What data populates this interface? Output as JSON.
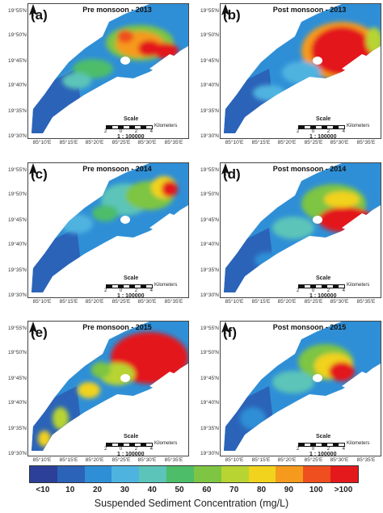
{
  "panels": [
    {
      "label": "(a)",
      "title": "Pre monsoon - 2013"
    },
    {
      "label": "(b)",
      "title": "Post monsoon - 2013"
    },
    {
      "label": "(c)",
      "title": "Pre monsoon - 2014"
    },
    {
      "label": "(d)",
      "title": "Post monsoon - 2014"
    },
    {
      "label": "(e)",
      "title": "Pre monsoon - 2015"
    },
    {
      "label": "(f)",
      "title": "Post monsoon - 2015"
    }
  ],
  "y_ticks": [
    "19°55'N",
    "19°50'N",
    "19°45'N",
    "19°40'N",
    "19°35'N",
    "19°30'N"
  ],
  "x_ticks": [
    "85°10'E",
    "85°15'E",
    "85°20'E",
    "85°25'E",
    "85°30'E",
    "85°35'E"
  ],
  "scale": {
    "title": "Scale",
    "units": "Kilometers",
    "ticks": [
      "2",
      "0",
      "2",
      "4"
    ],
    "ratio": "1 : 100000"
  },
  "legend": {
    "title": "Suspended Sediment Concentration (mg/L)",
    "classes": [
      {
        "label": "<10",
        "color": "#2c3f99"
      },
      {
        "label": "10",
        "color": "#2b63b8"
      },
      {
        "label": "20",
        "color": "#2f8fd6"
      },
      {
        "label": "30",
        "color": "#4fb3e0"
      },
      {
        "label": "40",
        "color": "#5cc4b8"
      },
      {
        "label": "50",
        "color": "#4dbd6a"
      },
      {
        "label": "60",
        "color": "#7dc543"
      },
      {
        "label": "70",
        "color": "#b7d433"
      },
      {
        "label": "80",
        "color": "#f1d21c"
      },
      {
        "label": "90",
        "color": "#f59a1c"
      },
      {
        "label": "100",
        "color": "#ef4f1f"
      },
      {
        "label": ">100",
        "color": "#e3191c"
      }
    ]
  },
  "north_arrow": "north-arrow-icon"
}
